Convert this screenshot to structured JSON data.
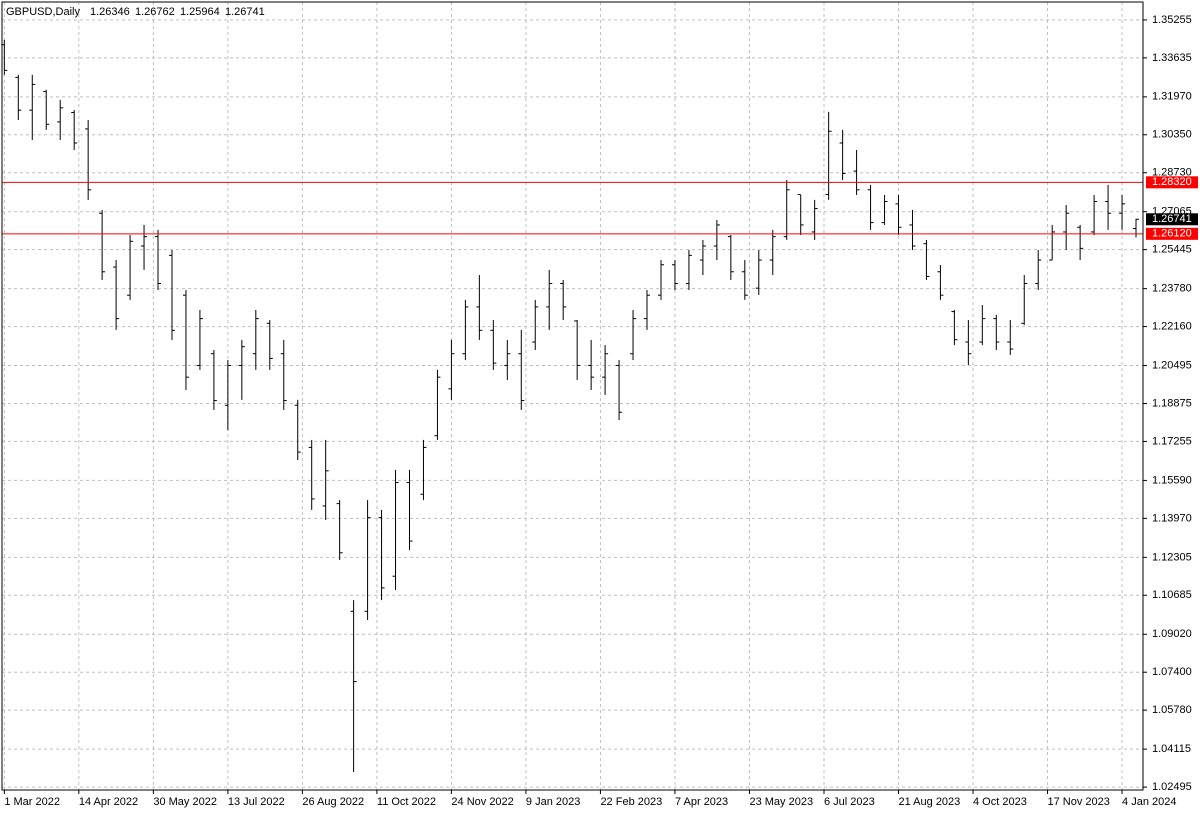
{
  "chart_data": {
    "type": "ohlc",
    "title": "GBPUSD,Daily",
    "x": [
      0,
      6,
      12,
      18,
      24,
      30,
      36,
      42,
      48,
      54,
      60,
      66,
      72,
      78,
      84,
      90,
      96,
      102,
      108,
      114,
      120,
      126,
      132,
      138,
      144,
      150,
      156,
      162,
      168,
      174,
      180,
      186,
      192,
      198,
      204,
      210,
      216,
      222,
      228,
      234,
      240,
      246,
      252,
      258,
      264,
      270,
      276,
      282,
      288,
      294,
      300,
      306,
      312,
      318,
      324,
      330,
      336,
      342,
      348,
      354,
      360,
      366,
      372,
      378,
      384,
      390,
      396,
      402,
      408,
      414,
      420,
      426,
      432,
      438,
      444,
      450,
      456,
      462,
      468,
      474,
      480,
      486
    ],
    "open": [
      1.342,
      1.328,
      1.314,
      1.322,
      1.309,
      1.313,
      1.306,
      1.27,
      1.247,
      1.235,
      1.256,
      1.26,
      1.252,
      1.235,
      1.205,
      1.21,
      1.188,
      1.205,
      1.21,
      1.223,
      1.21,
      1.188,
      1.17,
      1.145,
      1.146,
      1.1,
      1.1,
      1.14,
      1.115,
      1.155,
      1.15,
      1.175,
      1.195,
      1.21,
      1.23,
      1.22,
      1.205,
      1.21,
      1.215,
      1.23,
      1.24,
      1.224,
      1.205,
      1.2,
      1.205,
      1.21,
      1.225,
      1.235,
      1.248,
      1.24,
      1.25,
      1.256,
      1.26,
      1.245,
      1.238,
      1.25,
      1.26,
      1.278,
      1.262,
      1.278,
      1.3,
      1.288,
      1.28,
      1.266,
      1.274,
      1.265,
      1.257,
      1.245,
      1.228,
      1.215,
      1.215,
      1.225,
      1.215,
      1.223,
      1.24,
      1.25,
      1.262,
      1.264,
      1.262,
      1.275,
      1.27,
      1.26346
    ],
    "high": [
      1.344,
      1.3291,
      1.3291,
      1.3227,
      1.3184,
      1.3141,
      1.3098,
      1.2714,
      1.25,
      1.2607,
      1.265,
      1.2629,
      1.2543,
      1.2372,
      1.2287,
      1.2116,
      1.2073,
      1.2159,
      1.2287,
      1.2244,
      1.2159,
      1.1903,
      1.1732,
      1.1732,
      1.1475,
      1.1048,
      1.1475,
      1.1433,
      1.1604,
      1.1604,
      1.1732,
      1.2031,
      1.2159,
      1.233,
      1.2436,
      1.2244,
      1.2159,
      1.2202,
      1.233,
      1.2458,
      1.2415,
      1.2244,
      1.2159,
      1.2137,
      1.2073,
      1.2287,
      1.2372,
      1.25,
      1.25,
      1.2543,
      1.2586,
      1.2671,
      1.2607,
      1.25,
      1.2543,
      1.2629,
      1.2842,
      1.2778,
      1.2757,
      1.3133,
      1.3056,
      1.297,
      1.2821,
      1.2778,
      1.2778,
      1.2714,
      1.2586,
      1.2479,
      1.2287,
      1.2244,
      1.2308,
      1.2266,
      1.2244,
      1.2436,
      1.2543,
      1.265,
      1.2735,
      1.265,
      1.2778,
      1.2821,
      1.2778,
      1.26762
    ],
    "low": [
      1.3291,
      1.3098,
      1.3013,
      1.3056,
      1.3013,
      1.297,
      1.2757,
      1.2415,
      1.2202,
      1.233,
      1.2458,
      1.2372,
      1.2159,
      1.1945,
      1.2031,
      1.186,
      1.1774,
      1.1903,
      1.2031,
      1.2031,
      1.186,
      1.1646,
      1.1433,
      1.139,
      1.1219,
      1.0314,
      1.0963,
      1.1048,
      1.1091,
      1.1262,
      1.1475,
      1.1732,
      1.1903,
      1.2073,
      1.2159,
      1.2031,
      1.1988,
      1.186,
      1.2116,
      1.2202,
      1.2244,
      1.1988,
      1.1945,
      1.1924,
      1.1817,
      1.2073,
      1.2202,
      1.233,
      1.2372,
      1.2372,
      1.2436,
      1.25,
      1.2415,
      1.233,
      1.2351,
      1.2436,
      1.2586,
      1.2607,
      1.2586,
      1.2757,
      1.2842,
      1.2778,
      1.2629,
      1.265,
      1.2607,
      1.2543,
      1.2415,
      1.233,
      1.2137,
      1.2052,
      1.2137,
      1.2116,
      1.2095,
      1.2223,
      1.2372,
      1.25,
      1.2543,
      1.25,
      1.2607,
      1.2629,
      1.2629,
      1.25964
    ],
    "close": [
      1.331,
      1.314,
      1.325,
      1.308,
      1.315,
      1.3,
      1.28,
      1.245,
      1.225,
      1.258,
      1.26,
      1.24,
      1.22,
      1.2,
      1.225,
      1.19,
      1.205,
      1.213,
      1.225,
      1.208,
      1.19,
      1.168,
      1.148,
      1.16,
      1.125,
      1.07,
      1.14,
      1.11,
      1.155,
      1.13,
      1.17,
      1.2,
      1.21,
      1.23,
      1.22,
      1.206,
      1.21,
      1.19,
      1.23,
      1.24,
      1.23,
      1.205,
      1.2,
      1.21,
      1.185,
      1.225,
      1.235,
      1.248,
      1.24,
      1.252,
      1.256,
      1.265,
      1.245,
      1.235,
      1.25,
      1.26,
      1.28,
      1.265,
      1.272,
      1.305,
      1.287,
      1.28,
      1.266,
      1.275,
      1.264,
      1.256,
      1.243,
      1.235,
      1.216,
      1.21,
      1.225,
      1.215,
      1.212,
      1.24,
      1.25,
      1.262,
      1.27,
      1.255,
      1.275,
      1.27,
      1.274,
      1.26741
    ],
    "bar_color": "#000000",
    "xlim": [
      -1,
      489
    ],
    "ylim": [
      1.0237,
      1.3602
    ],
    "grid": true,
    "xticks": [
      {
        "value": 0,
        "label": "1 Mar 2022"
      },
      {
        "value": 32,
        "label": "14 Apr 2022"
      },
      {
        "value": 64,
        "label": "30 May 2022"
      },
      {
        "value": 96,
        "label": "13 Jul 2022"
      },
      {
        "value": 128,
        "label": "26 Aug 2022"
      },
      {
        "value": 160,
        "label": "11 Oct 2022"
      },
      {
        "value": 192,
        "label": "24 Nov 2022"
      },
      {
        "value": 224,
        "label": "9 Jan 2023"
      },
      {
        "value": 256,
        "label": "22 Feb 2023"
      },
      {
        "value": 288,
        "label": "7 Apr 2023"
      },
      {
        "value": 320,
        "label": "23 May 2023"
      },
      {
        "value": 352,
        "label": "6 Jul 2023"
      },
      {
        "value": 384,
        "label": "21 Aug 2023"
      },
      {
        "value": 416,
        "label": "4 Oct 2023"
      },
      {
        "value": 448,
        "label": "17 Nov 2023"
      },
      {
        "value": 480,
        "label": "4 Jan 2024"
      }
    ],
    "yticks": [
      1.35255,
      1.33635,
      {
        "value": 1.3197,
        "label": "1.31970"
      },
      {
        "value": 1.3035,
        "label": "1.30350"
      },
      {
        "value": 1.2873,
        "label": "1.28730"
      },
      1.27065,
      1.25445,
      {
        "value": 1.2378,
        "label": "1.23780"
      },
      {
        "value": 1.2216,
        "label": "1.22160"
      },
      1.20495,
      1.18875,
      1.17255,
      {
        "value": 1.1559,
        "label": "1.15590"
      },
      {
        "value": 1.1397,
        "label": "1.13970"
      },
      1.12305,
      1.10685,
      {
        "value": 1.0902,
        "label": "1.09020"
      },
      {
        "value": 1.074,
        "label": "1.07400"
      },
      {
        "value": 1.0578,
        "label": "1.05780"
      },
      1.04115,
      1.02495
    ],
    "hlines": [
      {
        "value": 1.2832,
        "label": "1.28320"
      },
      {
        "value": 1.2612,
        "label": "1.26120"
      }
    ],
    "hline_color": "#ff0000"
  }
}
